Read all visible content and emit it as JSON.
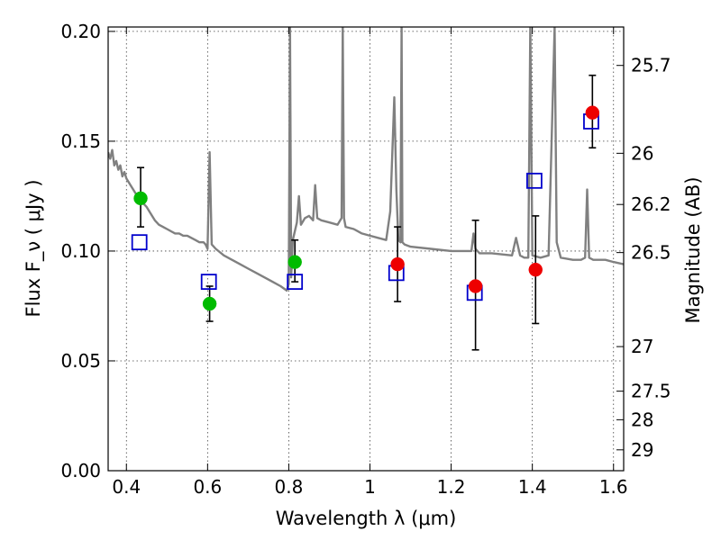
{
  "chart_data": {
    "type": "scatter",
    "xlabel": "Wavelength  λ (μm)",
    "ylabel": "Flux  F_ν  ( μJy )",
    "ylabel_right": "Magnitude (AB)",
    "xlim": [
      0.355,
      1.625
    ],
    "ylim": [
      0.0,
      0.202
    ],
    "grid": true,
    "x_ticks": [
      0.4,
      0.6,
      0.8,
      1.0,
      1.2,
      1.4,
      1.6
    ],
    "x_tick_labels": [
      "0.4",
      "0.6",
      "0.8",
      "1",
      "1.2",
      "1.4",
      "1.6"
    ],
    "y_ticks": [
      0.0,
      0.05,
      0.1,
      0.15,
      0.2
    ],
    "y_tick_labels": [
      "0.00",
      "0.05",
      "0.10",
      "0.15",
      "0.20"
    ],
    "right_ticks": [
      {
        "flux": 0.1845,
        "label": "25.7"
      },
      {
        "flux": 0.1445,
        "label": "26"
      },
      {
        "flux": 0.1212,
        "label": "26.2"
      },
      {
        "flux": 0.0993,
        "label": "26.5"
      },
      {
        "flux": 0.0565,
        "label": "27"
      },
      {
        "flux": 0.0362,
        "label": "27.5"
      },
      {
        "flux": 0.0232,
        "label": "28"
      },
      {
        "flux": 0.0095,
        "label": "29"
      }
    ],
    "series": [
      {
        "style": "model-spectrum-line",
        "color": "#808080",
        "x": [
          0.355,
          0.36,
          0.365,
          0.37,
          0.375,
          0.38,
          0.385,
          0.39,
          0.395,
          0.4,
          0.41,
          0.42,
          0.43,
          0.44,
          0.45,
          0.46,
          0.47,
          0.48,
          0.49,
          0.5,
          0.51,
          0.52,
          0.53,
          0.54,
          0.55,
          0.56,
          0.57,
          0.58,
          0.59,
          0.595,
          0.6,
          0.605,
          0.61,
          0.62,
          0.64,
          0.66,
          0.68,
          0.7,
          0.72,
          0.74,
          0.76,
          0.78,
          0.795,
          0.8,
          0.803,
          0.806,
          0.81,
          0.82,
          0.825,
          0.83,
          0.84,
          0.85,
          0.86,
          0.865,
          0.87,
          0.88,
          0.9,
          0.92,
          0.93,
          0.933,
          0.936,
          0.94,
          0.96,
          0.98,
          1.0,
          1.02,
          1.04,
          1.05,
          1.06,
          1.065,
          1.07,
          1.075,
          1.078,
          1.08,
          1.085,
          1.1,
          1.15,
          1.2,
          1.25,
          1.255,
          1.26,
          1.27,
          1.3,
          1.35,
          1.36,
          1.37,
          1.38,
          1.39,
          1.395,
          1.4,
          1.42,
          1.44,
          1.455,
          1.46,
          1.47,
          1.5,
          1.52,
          1.53,
          1.535,
          1.54,
          1.55,
          1.58,
          1.6,
          1.625
        ],
        "y": [
          0.145,
          0.142,
          0.146,
          0.139,
          0.141,
          0.137,
          0.139,
          0.134,
          0.136,
          0.133,
          0.13,
          0.127,
          0.124,
          0.122,
          0.12,
          0.117,
          0.114,
          0.112,
          0.111,
          0.11,
          0.109,
          0.108,
          0.108,
          0.107,
          0.107,
          0.106,
          0.105,
          0.104,
          0.104,
          0.103,
          0.101,
          0.145,
          0.103,
          0.101,
          0.098,
          0.096,
          0.094,
          0.092,
          0.09,
          0.088,
          0.086,
          0.084,
          0.082,
          0.085,
          0.202,
          0.088,
          0.105,
          0.113,
          0.125,
          0.112,
          0.115,
          0.116,
          0.114,
          0.13,
          0.115,
          0.114,
          0.113,
          0.112,
          0.115,
          0.202,
          0.115,
          0.111,
          0.11,
          0.108,
          0.107,
          0.106,
          0.105,
          0.118,
          0.17,
          0.128,
          0.105,
          0.104,
          0.202,
          0.104,
          0.103,
          0.102,
          0.101,
          0.1,
          0.1,
          0.108,
          0.101,
          0.099,
          0.099,
          0.098,
          0.106,
          0.098,
          0.097,
          0.097,
          0.202,
          0.098,
          0.097,
          0.098,
          0.202,
          0.104,
          0.097,
          0.096,
          0.096,
          0.097,
          0.128,
          0.097,
          0.096,
          0.096,
          0.095,
          0.094
        ]
      },
      {
        "style": "open-blue-square",
        "color": "#0000cc",
        "x": [
          0.432,
          0.603,
          0.815,
          1.065,
          1.258,
          1.405,
          1.545
        ],
        "y": [
          0.104,
          0.086,
          0.086,
          0.09,
          0.081,
          0.132,
          0.159
        ]
      },
      {
        "style": "filled-green-circle",
        "color": "#00bb00",
        "x": [
          0.435,
          0.605,
          0.815
        ],
        "y": [
          0.124,
          0.076,
          0.095
        ],
        "yerr_low": [
          0.111,
          0.068,
          0.086
        ],
        "yerr_high": [
          0.138,
          0.084,
          0.105
        ]
      },
      {
        "style": "filled-red-circle",
        "color": "#ee0000",
        "x": [
          1.068,
          1.26,
          1.408,
          1.548
        ],
        "y": [
          0.094,
          0.084,
          0.0915,
          0.163
        ],
        "yerr_low": [
          0.077,
          0.055,
          0.067,
          0.147
        ],
        "yerr_high": [
          0.111,
          0.114,
          0.116,
          0.18
        ]
      }
    ]
  }
}
